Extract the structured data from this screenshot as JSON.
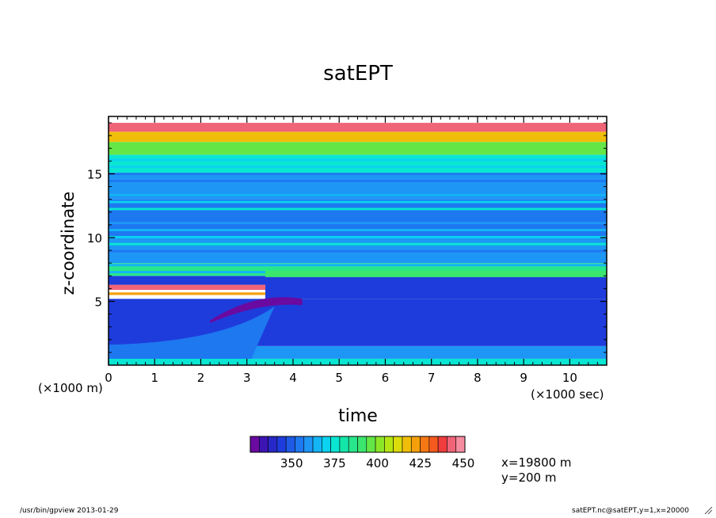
{
  "chart_data": {
    "type": "heatmap",
    "title": "satEPT",
    "xlabel": "time",
    "ylabel": "z-coordinate",
    "x_unit": "(×1000 sec)",
    "y_unit": "(×1000 m)",
    "x_ticks": [
      "0",
      "1",
      "2",
      "3",
      "4",
      "5",
      "6",
      "7",
      "8",
      "9",
      "10"
    ],
    "y_ticks": [
      "5",
      "10",
      "15"
    ],
    "xlim": [
      0,
      10.8
    ],
    "ylim": [
      0,
      19.5
    ],
    "colorbar": {
      "labels": [
        "350",
        "375",
        "400",
        "425",
        "450"
      ],
      "colors": [
        "#6a0aa0",
        "#3c14b4",
        "#2828c8",
        "#1e3cdc",
        "#1e5ae6",
        "#1e78f0",
        "#1e96f5",
        "#14b4f5",
        "#0ad2f0",
        "#0ae6d2",
        "#14e6aa",
        "#28e68c",
        "#3ce66e",
        "#64e646",
        "#8ce628",
        "#b4e614",
        "#dcdc0a",
        "#f0be0a",
        "#f5a00a",
        "#f57814",
        "#f55a1e",
        "#f03c3c",
        "#f06478",
        "#f58ca0"
      ],
      "range": [
        325,
        450
      ]
    },
    "annotations": [
      "x=19800 m",
      "y=200 m"
    ],
    "band_structure": [
      {
        "z": [
          0,
          0.5
        ],
        "value": 372
      },
      {
        "z": [
          0.5,
          1.5
        ],
        "value": 360
      },
      {
        "z": [
          1.5,
          5.2
        ],
        "value": 345
      },
      {
        "z": [
          5.2,
          7.0
        ],
        "value": 342
      },
      {
        "z": [
          7.0,
          8.0
        ],
        "value": 385
      },
      {
        "z": [
          8.0,
          10.0
        ],
        "value": 358
      },
      {
        "z": [
          10.0,
          13.0
        ],
        "value": 352
      },
      {
        "z": [
          13.0,
          15.0
        ],
        "value": 358
      },
      {
        "z": [
          15.0,
          16.5
        ],
        "value": 375
      },
      {
        "z": [
          16.5,
          17.5
        ],
        "value": 395
      },
      {
        "z": [
          17.5,
          18.3
        ],
        "value": 415
      },
      {
        "z": [
          18.3,
          19.0
        ],
        "value": 440
      }
    ]
  },
  "footer": {
    "left": "/usr/bin/gpview  2013-01-29",
    "right": "satEPT.nc@satEPT,y=1,x=20000"
  }
}
